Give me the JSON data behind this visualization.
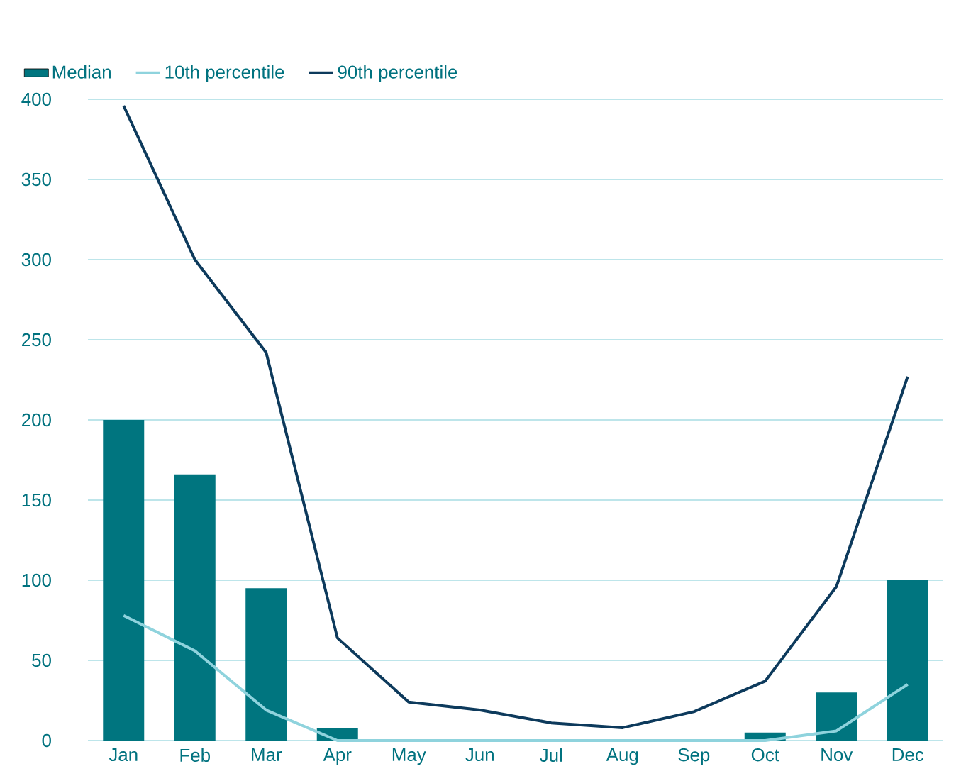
{
  "chart_data": {
    "type": "bar",
    "categories": [
      "Jan",
      "Feb",
      "Mar",
      "Apr",
      "May",
      "Jun",
      "Jul",
      "Aug",
      "Sep",
      "Oct",
      "Nov",
      "Dec"
    ],
    "series": [
      {
        "name": "Median",
        "color": "#00757f",
        "values": [
          200,
          166,
          95,
          8,
          0,
          0,
          0,
          0,
          0,
          5,
          30,
          100
        ]
      },
      {
        "name": "10th percentile",
        "type": "line",
        "color": "#8fd3dd",
        "values": [
          78,
          56,
          19,
          0,
          0,
          0,
          0,
          0,
          0,
          0,
          6,
          35
        ]
      },
      {
        "name": "90th percentile",
        "type": "line",
        "color": "#0d3a5c",
        "values": [
          396,
          300,
          242,
          64,
          24,
          19,
          11,
          8,
          18,
          37,
          96,
          227
        ]
      }
    ],
    "ylim": [
      0,
      400
    ],
    "yticks": [
      0,
      50,
      100,
      150,
      200,
      250,
      300,
      350,
      400
    ],
    "grid": "y",
    "legend": "top left",
    "marker": "none",
    "line_style": "solid"
  }
}
